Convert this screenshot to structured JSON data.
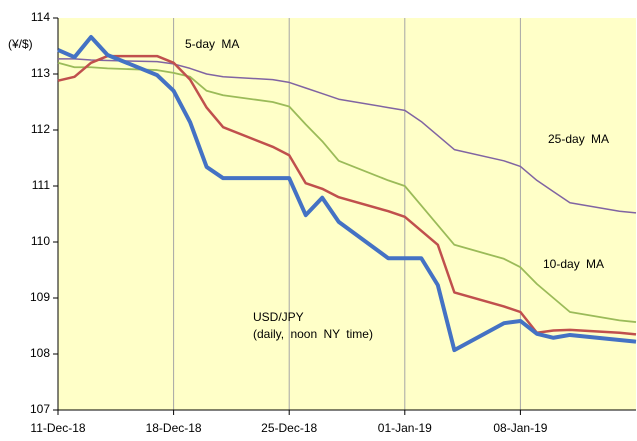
{
  "chart_data": {
    "type": "line",
    "y_unit_label": "(¥/$)",
    "x": [
      "2018-12-11",
      "2018-12-12",
      "2018-12-13",
      "2018-12-14",
      "2018-12-17",
      "2018-12-18",
      "2018-12-19",
      "2018-12-20",
      "2018-12-21",
      "2018-12-24",
      "2018-12-25",
      "2018-12-26",
      "2018-12-27",
      "2018-12-28",
      "2018-12-31",
      "2019-01-01",
      "2019-01-02",
      "2019-01-03",
      "2019-01-04",
      "2019-01-07",
      "2019-01-08",
      "2019-01-09",
      "2019-01-10",
      "2019-01-11",
      "2019-01-14",
      "2019-01-15"
    ],
    "series": [
      {
        "name": "USD/JPY",
        "color": "#4472c4",
        "values": [
          113.43,
          113.3,
          113.66,
          113.34,
          112.98,
          112.7,
          112.14,
          111.34,
          111.14,
          111.14,
          111.14,
          110.48,
          110.79,
          110.36,
          109.71,
          109.71,
          109.71,
          109.23,
          108.07,
          108.55,
          108.59,
          108.36,
          108.29,
          108.34,
          108.25,
          108.22
        ]
      },
      {
        "name": "5-day MA",
        "color": "#c0504d",
        "values": [
          112.88,
          112.95,
          113.2,
          113.32,
          113.32,
          113.2,
          112.9,
          112.4,
          112.05,
          111.7,
          111.55,
          111.05,
          110.95,
          110.8,
          110.55,
          110.45,
          110.2,
          109.95,
          109.1,
          108.85,
          108.75,
          108.38,
          108.42,
          108.43,
          108.38,
          108.35
        ]
      },
      {
        "name": "10-day MA",
        "color": "#9bbb59",
        "values": [
          113.2,
          113.12,
          113.12,
          113.1,
          113.07,
          113.02,
          112.95,
          112.7,
          112.62,
          112.5,
          112.42,
          112.1,
          111.8,
          111.45,
          111.1,
          111.0,
          110.65,
          110.3,
          109.95,
          109.7,
          109.55,
          109.25,
          109.0,
          108.75,
          108.6,
          108.57
        ]
      },
      {
        "name": "25-day MA",
        "color": "#8064a2",
        "values": [
          113.27,
          113.27,
          113.25,
          113.24,
          113.22,
          113.18,
          113.1,
          113.0,
          112.95,
          112.9,
          112.85,
          112.75,
          112.65,
          112.55,
          112.4,
          112.35,
          112.15,
          111.9,
          111.65,
          111.45,
          111.35,
          111.1,
          110.9,
          110.7,
          110.55,
          110.52
        ]
      }
    ],
    "annotation": "(daily, noon NY time)",
    "xlim": [
      "2018-12-11",
      "2019-01-15"
    ],
    "xticks": [
      {
        "value": "2018-12-11",
        "label": "11-Dec-18"
      },
      {
        "value": "2018-12-18",
        "label": "18-Dec-18"
      },
      {
        "value": "2018-12-25",
        "label": "25-Dec-18"
      },
      {
        "value": "2019-01-01",
        "label": "01-Jan-19"
      },
      {
        "value": "2019-01-08",
        "label": "08-Jan-19"
      }
    ],
    "ylim": [
      107,
      114
    ],
    "yticks": [
      107,
      108,
      109,
      110,
      111,
      112,
      113,
      114
    ],
    "grid": "x",
    "background": "#ffffc8"
  }
}
